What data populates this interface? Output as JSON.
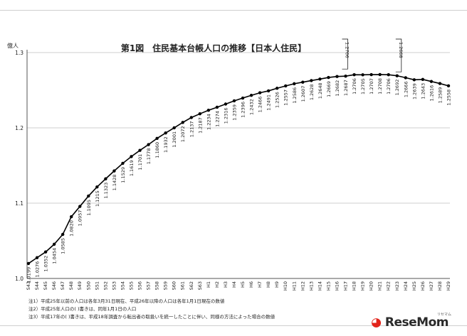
{
  "chart_data": {
    "type": "line",
    "title": "第1図　住民基本台帳人口の推移【日本人住民】",
    "ylabel": "億人",
    "ylim": [
      1.0,
      1.3
    ],
    "yticks": [
      "1.0",
      "1.1",
      "1.2",
      "1.3"
    ],
    "categories": [
      "S43",
      "S44",
      "S45",
      "S46",
      "S47",
      "S48",
      "S49",
      "S50",
      "S51",
      "S52",
      "S53",
      "S54",
      "S55",
      "S56",
      "S57",
      "S58",
      "S59",
      "S60",
      "S61",
      "S62",
      "S63",
      "H1",
      "H2",
      "H3",
      "H4",
      "H5",
      "H6",
      "H7",
      "H8",
      "H9",
      "H10",
      "H11",
      "H12",
      "H13",
      "H14",
      "H15",
      "H16",
      "H17",
      "H18",
      "H19",
      "H20",
      "H21",
      "H22",
      "H23",
      "H24",
      "H25",
      "H26",
      "H27",
      "H28",
      "H29"
    ],
    "values": [
      1.0199,
      1.0276,
      1.0352,
      1.0454,
      1.0585,
      1.082,
      1.0957,
      1.1095,
      1.1215,
      1.1323,
      1.1428,
      1.1529,
      1.1619,
      1.1701,
      1.1778,
      1.186,
      1.1932,
      1.2001,
      1.2072,
      1.2137,
      1.2187,
      1.2234,
      1.2274,
      1.2316,
      1.2359,
      1.2396,
      1.2432,
      1.2466,
      1.2491,
      1.2526,
      1.2557,
      1.2586,
      1.2607,
      1.2628,
      1.2648,
      1.2669,
      1.2682,
      1.2687,
      1.2706,
      1.2705,
      1.2707,
      1.2708,
      1.2706,
      1.2692,
      1.2666,
      1.2639,
      1.2643,
      1.2616,
      1.2589,
      1.2558
    ],
    "labels": [
      "1.0199",
      "1.0276",
      "1.0352",
      "1.0454",
      "1.0585",
      "1.0820",
      "1.0957",
      "1.1095",
      "1.1215",
      "1.1323",
      "1.1428",
      "1.1529",
      "1.1619",
      "1.1701",
      "1.1778",
      "1.1860",
      "1.1932",
      "1.2001",
      "1.2072",
      "1.2137",
      "1.2187",
      "1.2234",
      "1.2274",
      "1.2316",
      "1.2359",
      "1.2396",
      "1.2432",
      "1.2466",
      "1.2491",
      "1.2526",
      "1.2557",
      "1.2586",
      "1.2607",
      "1.2628",
      "1.2648",
      "1.2669",
      "1.2682",
      "1.2687",
      "1.2706",
      "1.2705",
      "1.2707",
      "1.2708",
      "1.2706",
      "1.2692",
      "1.2666",
      "1.2639",
      "1.2643",
      "1.2616",
      "1.2589",
      "1.2558"
    ],
    "bracket_annotations": [
      {
        "category": "S17_H17",
        "at_index": 37,
        "value": 1.2706,
        "label": "1.2706"
      },
      {
        "category": "H25",
        "at_index": 45,
        "value": 1.2668,
        "label": "1.2668"
      }
    ],
    "grid": "horizontal",
    "notes": [
      "注1）平成25年以前の人口は各年3月31日現在、平成26年以降の人口は各年1月1日現在の数値",
      "注2）平成25年人口の( )書きは、同年1月1日の人口",
      "注3）平成17年の( )書きは、平成18年調査から転出者の取扱いを統一したことに伴い、同様の方法によった場合の数値"
    ]
  },
  "branding": {
    "logo_main": "ReseMom",
    "logo_sub": "リセマム"
  },
  "colors": {
    "line": "#000000",
    "grid": "#bfbfbf",
    "axis": "#555555",
    "text": "#222222",
    "logo_accent": "#e2231a"
  }
}
